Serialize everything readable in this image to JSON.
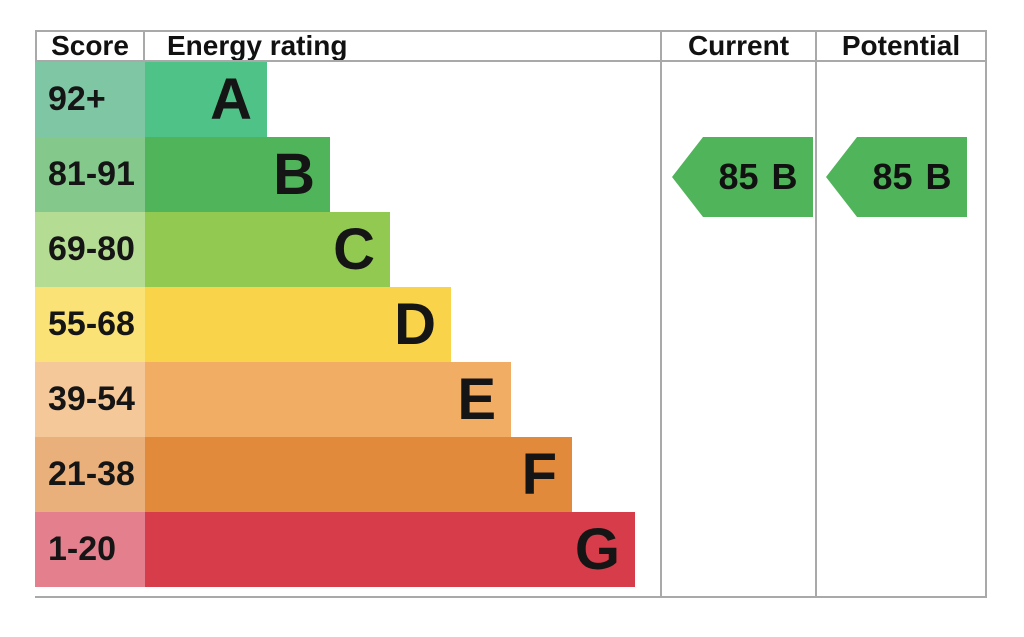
{
  "header": {
    "score": "Score",
    "energy_rating": "Energy rating",
    "current": "Current",
    "potential": "Potential"
  },
  "bands": [
    {
      "score": "92+",
      "letter": "A",
      "bar_color": "#4EC287",
      "score_color": "#7FC7A4"
    },
    {
      "score": "81-91",
      "letter": "B",
      "bar_color": "#50B45A",
      "score_color": "#84C88C"
    },
    {
      "score": "69-80",
      "letter": "C",
      "bar_color": "#92CA51",
      "score_color": "#B5DC93"
    },
    {
      "score": "55-68",
      "letter": "D",
      "bar_color": "#F9D44B",
      "score_color": "#FAE276"
    },
    {
      "score": "39-54",
      "letter": "E",
      "bar_color": "#F2AD64",
      "score_color": "#F5C89A"
    },
    {
      "score": "21-38",
      "letter": "F",
      "bar_color": "#E28A3C",
      "score_color": "#EAB07B"
    },
    {
      "score": "1-20",
      "letter": "G",
      "bar_color": "#D73C4A",
      "score_color": "#E47F8D"
    }
  ],
  "current": {
    "value": "85",
    "letter": "B",
    "arrow_color": "#4FB45A"
  },
  "potential": {
    "value": "85",
    "letter": "B",
    "arrow_color": "#4FB45A"
  },
  "colors": {
    "border": "#a9a9a9",
    "text": "#151515",
    "background": "#ffffff"
  },
  "chart_data": {
    "type": "bar",
    "categories": [
      "A",
      "B",
      "C",
      "D",
      "E",
      "F",
      "G"
    ],
    "score_ranges": [
      "92+",
      "81-91",
      "69-80",
      "55-68",
      "39-54",
      "21-38",
      "1-20"
    ],
    "columns": [
      "Score",
      "Energy rating",
      "Current",
      "Potential"
    ],
    "current": {
      "score": 85,
      "rating": "B"
    },
    "potential": {
      "score": 85,
      "rating": "B"
    },
    "legend_position": "none",
    "grid": false
  }
}
